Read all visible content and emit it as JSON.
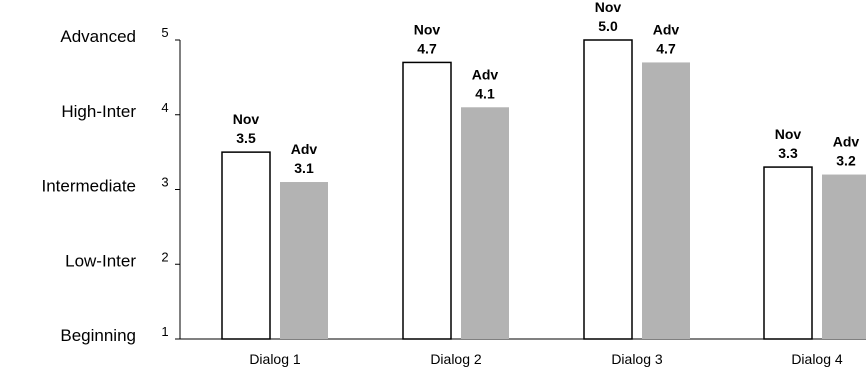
{
  "chart_data": {
    "type": "bar",
    "title": "",
    "xlabel": "",
    "ylabel": "",
    "ylim": [
      1,
      5
    ],
    "yticks": [
      "1",
      "2",
      "3",
      "4",
      "5"
    ],
    "level_labels": [
      "Beginning",
      "Low-Inter",
      "Intermediate",
      "High-Inter",
      "Advanced"
    ],
    "categories": [
      "Dialog 1",
      "Dialog 2",
      "Dialog 3",
      "Dialog 4"
    ],
    "series": [
      {
        "name": "Nov",
        "values": [
          3.5,
          4.7,
          5.0,
          3.3
        ],
        "value_labels": [
          "3.5",
          "4.7",
          "5.0",
          "3.3"
        ],
        "fill": "#ffffff",
        "stroke": "#000000"
      },
      {
        "name": "Adv",
        "values": [
          3.1,
          4.1,
          4.7,
          3.2
        ],
        "value_labels": [
          "3.1",
          "4.1",
          "4.7",
          "3.2"
        ],
        "fill": "#b3b3b3",
        "stroke": "none"
      }
    ],
    "grid": false,
    "legend": "none"
  }
}
